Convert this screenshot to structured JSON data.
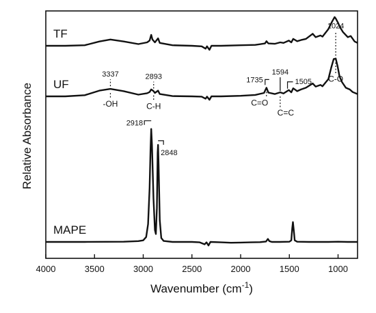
{
  "chart_data": {
    "type": "line",
    "xlabel": "Wavenumber (cm",
    "xlabel_sup": "-1",
    "xlabel_close": ")",
    "ylabel": "Relative Absorbance",
    "xlim": [
      4000,
      800
    ],
    "x_reversed": true,
    "xticks": [
      4000,
      3500,
      3000,
      2500,
      2000,
      1500,
      1000
    ],
    "yticks_shown": false,
    "grid": false,
    "series": [
      {
        "name": "TF",
        "baseline": 0.84,
        "points": [
          [
            4000,
            0.84
          ],
          [
            3800,
            0.84
          ],
          [
            3600,
            0.842
          ],
          [
            3450,
            0.855
          ],
          [
            3337,
            0.862
          ],
          [
            3200,
            0.855
          ],
          [
            3050,
            0.846
          ],
          [
            2960,
            0.852
          ],
          [
            2935,
            0.858
          ],
          [
            2918,
            0.878
          ],
          [
            2905,
            0.862
          ],
          [
            2880,
            0.852
          ],
          [
            2848,
            0.866
          ],
          [
            2830,
            0.85
          ],
          [
            2700,
            0.842
          ],
          [
            2500,
            0.84
          ],
          [
            2400,
            0.838
          ],
          [
            2360,
            0.83
          ],
          [
            2345,
            0.838
          ],
          [
            2320,
            0.826
          ],
          [
            2300,
            0.84
          ],
          [
            2200,
            0.84
          ],
          [
            2000,
            0.842
          ],
          [
            1850,
            0.843
          ],
          [
            1750,
            0.848
          ],
          [
            1735,
            0.856
          ],
          [
            1715,
            0.848
          ],
          [
            1650,
            0.847
          ],
          [
            1594,
            0.852
          ],
          [
            1560,
            0.85
          ],
          [
            1505,
            0.858
          ],
          [
            1480,
            0.852
          ],
          [
            1460,
            0.864
          ],
          [
            1420,
            0.856
          ],
          [
            1380,
            0.86
          ],
          [
            1330,
            0.864
          ],
          [
            1260,
            0.882
          ],
          [
            1230,
            0.87
          ],
          [
            1180,
            0.876
          ],
          [
            1160,
            0.872
          ],
          [
            1100,
            0.898
          ],
          [
            1060,
            0.925
          ],
          [
            1035,
            0.94
          ],
          [
            1024,
            0.935
          ],
          [
            1000,
            0.92
          ],
          [
            980,
            0.905
          ],
          [
            950,
            0.888
          ],
          [
            900,
            0.87
          ],
          [
            870,
            0.874
          ],
          [
            830,
            0.855
          ],
          [
            800,
            0.85
          ]
        ]
      },
      {
        "name": "UF",
        "baseline": 0.66,
        "points": [
          [
            4000,
            0.66
          ],
          [
            3800,
            0.66
          ],
          [
            3600,
            0.664
          ],
          [
            3450,
            0.68
          ],
          [
            3337,
            0.686
          ],
          [
            3200,
            0.678
          ],
          [
            3050,
            0.666
          ],
          [
            2960,
            0.671
          ],
          [
            2935,
            0.675
          ],
          [
            2918,
            0.684
          ],
          [
            2893,
            0.678
          ],
          [
            2880,
            0.672
          ],
          [
            2848,
            0.68
          ],
          [
            2830,
            0.668
          ],
          [
            2700,
            0.661
          ],
          [
            2500,
            0.66
          ],
          [
            2400,
            0.659
          ],
          [
            2360,
            0.652
          ],
          [
            2345,
            0.659
          ],
          [
            2320,
            0.648
          ],
          [
            2300,
            0.66
          ],
          [
            2200,
            0.66
          ],
          [
            2000,
            0.662
          ],
          [
            1850,
            0.665
          ],
          [
            1760,
            0.672
          ],
          [
            1735,
            0.69
          ],
          [
            1715,
            0.673
          ],
          [
            1650,
            0.668
          ],
          [
            1594,
            0.674
          ],
          [
            1560,
            0.67
          ],
          [
            1505,
            0.682
          ],
          [
            1480,
            0.674
          ],
          [
            1460,
            0.688
          ],
          [
            1420,
            0.678
          ],
          [
            1380,
            0.684
          ],
          [
            1330,
            0.69
          ],
          [
            1260,
            0.705
          ],
          [
            1230,
            0.694
          ],
          [
            1180,
            0.7
          ],
          [
            1160,
            0.695
          ],
          [
            1100,
            0.72
          ],
          [
            1070,
            0.76
          ],
          [
            1045,
            0.79
          ],
          [
            1024,
            0.792
          ],
          [
            1005,
            0.765
          ],
          [
            985,
            0.73
          ],
          [
            960,
            0.71
          ],
          [
            920,
            0.69
          ],
          [
            880,
            0.684
          ],
          [
            850,
            0.675
          ],
          [
            800,
            0.668
          ]
        ]
      },
      {
        "name": "MAPE",
        "baseline": 0.03,
        "points": [
          [
            4000,
            0.03
          ],
          [
            3600,
            0.03
          ],
          [
            3200,
            0.031
          ],
          [
            3050,
            0.034
          ],
          [
            3000,
            0.038
          ],
          [
            2970,
            0.055
          ],
          [
            2950,
            0.12
          ],
          [
            2935,
            0.3
          ],
          [
            2925,
            0.5
          ],
          [
            2918,
            0.6
          ],
          [
            2910,
            0.52
          ],
          [
            2895,
            0.25
          ],
          [
            2880,
            0.09
          ],
          [
            2870,
            0.07
          ],
          [
            2860,
            0.2
          ],
          [
            2852,
            0.48
          ],
          [
            2848,
            0.52
          ],
          [
            2842,
            0.42
          ],
          [
            2830,
            0.14
          ],
          [
            2815,
            0.05
          ],
          [
            2790,
            0.035
          ],
          [
            2700,
            0.03
          ],
          [
            2500,
            0.03
          ],
          [
            2420,
            0.028
          ],
          [
            2370,
            0.018
          ],
          [
            2350,
            0.028
          ],
          [
            2330,
            0.012
          ],
          [
            2310,
            0.03
          ],
          [
            2200,
            0.028
          ],
          [
            2100,
            0.026
          ],
          [
            2000,
            0.027
          ],
          [
            1900,
            0.028
          ],
          [
            1800,
            0.029
          ],
          [
            1740,
            0.032
          ],
          [
            1720,
            0.045
          ],
          [
            1705,
            0.034
          ],
          [
            1680,
            0.03
          ],
          [
            1600,
            0.03
          ],
          [
            1500,
            0.031
          ],
          [
            1480,
            0.038
          ],
          [
            1470,
            0.1
          ],
          [
            1463,
            0.13
          ],
          [
            1455,
            0.09
          ],
          [
            1445,
            0.038
          ],
          [
            1420,
            0.031
          ],
          [
            1300,
            0.03
          ],
          [
            1100,
            0.03
          ],
          [
            1000,
            0.031
          ],
          [
            900,
            0.03
          ],
          [
            800,
            0.03
          ]
        ]
      }
    ],
    "annotations": [
      {
        "text": "3337",
        "x": 3337,
        "series": "UF",
        "pos": "above",
        "dotted": true
      },
      {
        "text": "-OH",
        "x": 3337,
        "series": "UF",
        "pos": "below"
      },
      {
        "text": "2893",
        "x": 2893,
        "series": "UF",
        "pos": "above",
        "dotted": true
      },
      {
        "text": "C-H",
        "x": 2893,
        "series": "UF",
        "pos": "below"
      },
      {
        "text": "1735",
        "x": 1735,
        "series": "UF",
        "pos": "above-left",
        "bracket": true
      },
      {
        "text": "C=O",
        "x": 1735,
        "series": "UF",
        "pos": "below"
      },
      {
        "text": "1594",
        "x": 1594,
        "series": "UF",
        "pos": "above",
        "solid": true
      },
      {
        "text": "1505",
        "x": 1505,
        "series": "UF",
        "pos": "above-right",
        "bracket": true
      },
      {
        "text": "C=C",
        "x": 1594,
        "series": "UF",
        "pos": "below",
        "dotted": true
      },
      {
        "text": "1024",
        "x": 1024,
        "series": "UF",
        "pos": "top",
        "dotted": true
      },
      {
        "text": "C-O",
        "x": 1024,
        "series": "UF",
        "pos": "below",
        "dotted": true
      },
      {
        "text": "2918",
        "x": 2918,
        "series": "MAPE",
        "pos": "top-left",
        "bracket": true
      },
      {
        "text": "2848",
        "x": 2848,
        "series": "MAPE",
        "pos": "top-right",
        "bracket": true
      }
    ]
  }
}
